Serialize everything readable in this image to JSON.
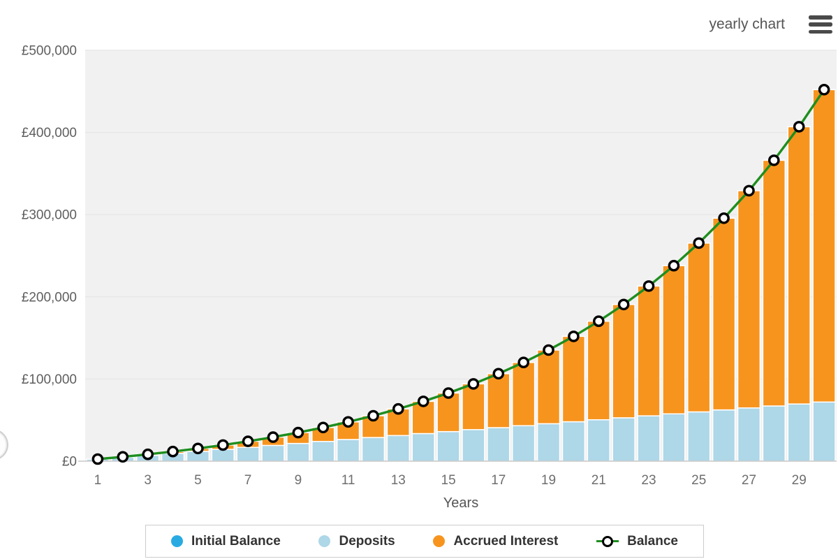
{
  "header": {
    "chart_label": "yearly chart"
  },
  "chart_data": {
    "type": "bar",
    "stacked": true,
    "title": "",
    "xlabel": "Years",
    "ylabel": "",
    "ylim": [
      0,
      500000
    ],
    "grid": true,
    "legend_position": "bottom",
    "x": [
      1,
      2,
      3,
      4,
      5,
      6,
      7,
      8,
      9,
      10,
      11,
      12,
      13,
      14,
      15,
      16,
      17,
      18,
      19,
      20,
      21,
      22,
      23,
      24,
      25,
      26,
      27,
      28,
      29,
      30
    ],
    "xticks": [
      1,
      3,
      5,
      7,
      9,
      11,
      13,
      15,
      17,
      19,
      21,
      23,
      25,
      27,
      29
    ],
    "xtick_labels": [
      "1",
      "3",
      "5",
      "7",
      "9",
      "11",
      "13",
      "15",
      "17",
      "19",
      "21",
      "23",
      "25",
      "27",
      "29"
    ],
    "yticks": [
      0,
      100000,
      200000,
      300000,
      400000,
      500000
    ],
    "ytick_labels": [
      "£0",
      "£100,000",
      "£200,000",
      "£300,000",
      "£400,000",
      "£500,000"
    ],
    "series": [
      {
        "name": "Initial Balance",
        "kind": "bar",
        "color": "#29abe2",
        "values": [
          0,
          0,
          0,
          0,
          0,
          0,
          0,
          0,
          0,
          0,
          0,
          0,
          0,
          0,
          0,
          0,
          0,
          0,
          0,
          0,
          0,
          0,
          0,
          0,
          0,
          0,
          0,
          0,
          0,
          0
        ]
      },
      {
        "name": "Deposits",
        "kind": "bar",
        "color": "#aed7e8",
        "values": [
          2400,
          4800,
          7200,
          9600,
          12000,
          14400,
          16800,
          19200,
          21600,
          24000,
          26400,
          28800,
          31200,
          33600,
          36000,
          38400,
          40800,
          43200,
          45600,
          48000,
          50400,
          52800,
          55200,
          57600,
          60000,
          62400,
          64800,
          67200,
          69600,
          72000
        ]
      },
      {
        "name": "Accrued Interest",
        "kind": "bar",
        "color": "#f7941e",
        "values": [
          113,
          489,
          1156,
          2145,
          3487,
          5222,
          7390,
          10036,
          13211,
          16969,
          21372,
          26488,
          32390,
          39162,
          46894,
          55687,
          65653,
          76913,
          89603,
          103874,
          119890,
          137835,
          157910,
          180338,
          205367,
          233267,
          264341,
          298919,
          337370,
          380098
        ]
      },
      {
        "name": "Balance",
        "kind": "line",
        "color": "#1e8e1e",
        "marker": "circle-open",
        "marker_fill": "#ffffff",
        "marker_stroke": "#000000",
        "values": [
          2513,
          5289,
          8356,
          11745,
          15487,
          19622,
          24190,
          29236,
          34811,
          40969,
          47772,
          55288,
          63590,
          72762,
          82894,
          94087,
          106453,
          120113,
          135203,
          151874,
          170290,
          190635,
          213110,
          237938,
          265367,
          295667,
          329141,
          366119,
          406970,
          452098
        ]
      }
    ],
    "style": {
      "plot_bg": "#f1f1f1",
      "gridline": "#e7e7e7",
      "baseline": "#bdbdbd",
      "bar_gap_stroke": "#ffffff",
      "ytick_text": "#5e5e5e",
      "xtick_text": "#6e6e6e",
      "axis_title_text": "#555555"
    }
  },
  "legend": {
    "items": [
      {
        "label": "Initial Balance",
        "color": "#29abe2",
        "marker": "dot"
      },
      {
        "label": "Deposits",
        "color": "#aed7e8",
        "marker": "dot"
      },
      {
        "label": "Accrued Interest",
        "color": "#f7941e",
        "marker": "dot"
      },
      {
        "label": "Balance",
        "color": "#1e8e1e",
        "marker": "line-ring"
      }
    ]
  }
}
